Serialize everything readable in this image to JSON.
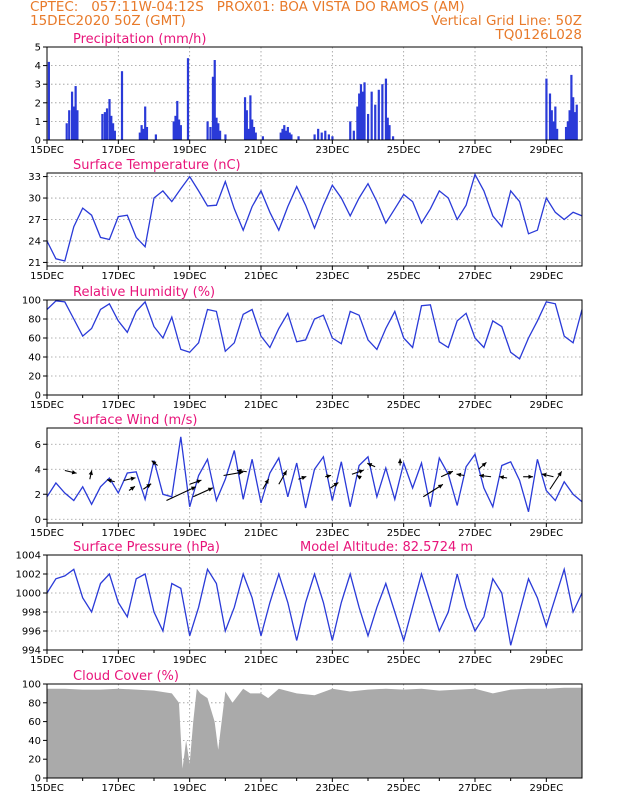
{
  "header": {
    "line1_left": "CPTEC:   057:11W-04:12S   PROX01: BOA VISTA DO RAMOS (AM)",
    "line2_left": "15DEC2020 50Z (GMT)",
    "line2_right": "Vertical Grid Line: 50Z",
    "line3_right": "TQ0126L028"
  },
  "colors": {
    "header": "#e87a2a",
    "title": "#e8147a",
    "line": "#2a3ad8",
    "bar": "#2a3ad8",
    "cloud": "#aaaaaa"
  },
  "x_ticks": [
    "15DEC",
    "17DEC",
    "19DEC",
    "21DEC",
    "23DEC",
    "25DEC",
    "27DEC",
    "29DEC"
  ],
  "x_tick_days": [
    0,
    2,
    4,
    6,
    8,
    10,
    12,
    14
  ],
  "x_range_days": [
    0,
    15
  ],
  "chart_data": [
    {
      "type": "bar",
      "name": "precipitation",
      "title": "Precipitation (mm/h)",
      "ylim": [
        0,
        5
      ],
      "yticks": [
        0,
        1,
        2,
        3,
        4,
        5
      ],
      "x_days": [
        0.05,
        0.55,
        0.62,
        0.7,
        0.75,
        0.8,
        0.85,
        1.55,
        1.62,
        1.68,
        1.75,
        1.8,
        1.85,
        1.9,
        2.1,
        2.6,
        2.65,
        2.7,
        2.75,
        2.8,
        3.05,
        3.55,
        3.6,
        3.65,
        3.7,
        3.75,
        3.95,
        4.5,
        4.58,
        4.65,
        4.7,
        4.75,
        4.8,
        4.85,
        5.0,
        5.55,
        5.6,
        5.65,
        5.7,
        5.75,
        5.8,
        5.85,
        6.05,
        6.55,
        6.6,
        6.65,
        6.7,
        6.75,
        6.8,
        6.85,
        7.05,
        7.5,
        7.6,
        7.7,
        7.8,
        7.9,
        8.0,
        8.5,
        8.6,
        8.7,
        8.75,
        8.8,
        8.85,
        8.9,
        9.0,
        9.1,
        9.2,
        9.3,
        9.4,
        9.5,
        9.55,
        9.6,
        9.7,
        14.0,
        14.1,
        14.15,
        14.2,
        14.25,
        14.3,
        14.55,
        14.6,
        14.65,
        14.7,
        14.75,
        14.8,
        14.85
      ],
      "values": [
        4.2,
        0.9,
        1.6,
        2.6,
        1.8,
        2.9,
        1.6,
        1.4,
        1.5,
        1.7,
        2.2,
        1.3,
        0.9,
        0.5,
        3.7,
        0.4,
        0.8,
        0.6,
        1.8,
        0.7,
        0.3,
        1.0,
        1.3,
        2.1,
        1.1,
        0.8,
        4.4,
        1.0,
        0.7,
        3.4,
        4.3,
        1.2,
        0.9,
        0.5,
        0.3,
        2.3,
        1.6,
        0.6,
        2.4,
        1.1,
        0.7,
        0.4,
        0.2,
        0.4,
        0.6,
        0.8,
        0.5,
        0.7,
        0.4,
        0.3,
        0.2,
        0.3,
        0.6,
        0.4,
        0.5,
        0.3,
        0.2,
        1.0,
        0.5,
        1.8,
        2.5,
        3.0,
        2.6,
        3.1,
        1.4,
        2.6,
        1.9,
        2.7,
        3.0,
        3.3,
        1.2,
        0.8,
        0.2,
        3.3,
        2.5,
        1.6,
        1.0,
        1.8,
        0.6,
        0.7,
        1.0,
        1.6,
        3.5,
        2.3,
        1.5,
        1.9
      ]
    },
    {
      "type": "line",
      "name": "temperature",
      "title": "Surface Temperature (nC)",
      "ylim": [
        20.5,
        33.5
      ],
      "yticks": [
        21,
        24,
        27,
        30,
        33
      ],
      "x": [
        0,
        0.25,
        0.5,
        0.75,
        1.0,
        1.25,
        1.5,
        1.75,
        2.0,
        2.25,
        2.5,
        2.75,
        3.0,
        3.25,
        3.5,
        3.75,
        4.0,
        4.25,
        4.5,
        4.75,
        5.0,
        5.25,
        5.5,
        5.75,
        6.0,
        6.25,
        6.5,
        6.75,
        7.0,
        7.25,
        7.5,
        7.75,
        8.0,
        8.25,
        8.5,
        8.75,
        9.0,
        9.25,
        9.5,
        9.75,
        10.0,
        10.25,
        10.5,
        10.75,
        11.0,
        11.25,
        11.5,
        11.75,
        12.0,
        12.25,
        12.5,
        12.75,
        13.0,
        13.25,
        13.5,
        13.75,
        14.0,
        14.25,
        14.5,
        14.75,
        15.0
      ],
      "values": [
        24,
        21.5,
        21.2,
        26.0,
        28.6,
        27.6,
        24.5,
        24.2,
        27.4,
        27.6,
        24.5,
        23.2,
        30.0,
        31.0,
        29.5,
        31.3,
        33.0,
        31.0,
        28.9,
        29.0,
        32.3,
        28.5,
        25.5,
        28.8,
        31.0,
        28.0,
        25.5,
        28.8,
        31.6,
        29.0,
        25.8,
        29.0,
        31.8,
        30.0,
        27.5,
        30.0,
        32.0,
        29.5,
        26.5,
        28.5,
        30.5,
        29.5,
        26.5,
        28.5,
        31.0,
        30.0,
        27.0,
        29.0,
        33.3,
        31.0,
        27.5,
        26.0,
        31.0,
        29.5,
        25.0,
        25.5,
        30.0,
        28.0,
        27.0,
        28.0,
        27.5
      ]
    },
    {
      "type": "line",
      "name": "humidity",
      "title": "Relative Humidity (%)",
      "ylim": [
        0,
        100
      ],
      "yticks": [
        0,
        20,
        40,
        60,
        80,
        100
      ],
      "x": [
        0,
        0.25,
        0.5,
        0.75,
        1.0,
        1.25,
        1.5,
        1.75,
        2.0,
        2.25,
        2.5,
        2.75,
        3.0,
        3.25,
        3.5,
        3.75,
        4.0,
        4.25,
        4.5,
        4.75,
        5.0,
        5.25,
        5.5,
        5.75,
        6.0,
        6.25,
        6.5,
        6.75,
        7.0,
        7.25,
        7.5,
        7.75,
        8.0,
        8.25,
        8.5,
        8.75,
        9.0,
        9.25,
        9.5,
        9.75,
        10.0,
        10.25,
        10.5,
        10.75,
        11.0,
        11.25,
        11.5,
        11.75,
        12.0,
        12.25,
        12.5,
        12.75,
        13.0,
        13.25,
        13.5,
        13.75,
        14.0,
        14.25,
        14.5,
        14.75,
        15.0
      ],
      "values": [
        90,
        99,
        98,
        80,
        62,
        70,
        90,
        96,
        78,
        66,
        88,
        98,
        72,
        60,
        82,
        48,
        45,
        55,
        90,
        88,
        46,
        55,
        85,
        90,
        62,
        50,
        70,
        86,
        56,
        58,
        80,
        84,
        60,
        54,
        88,
        84,
        58,
        48,
        70,
        88,
        60,
        50,
        94,
        95,
        56,
        50,
        78,
        86,
        60,
        50,
        78,
        72,
        45,
        38,
        60,
        78,
        98,
        96,
        62,
        55,
        90
      ]
    },
    {
      "type": "line",
      "name": "wind",
      "title": "Surface Wind (m/s)",
      "ylim": [
        -0.3,
        7.3
      ],
      "yticks": [
        0,
        2,
        4,
        6
      ],
      "x": [
        0,
        0.25,
        0.5,
        0.75,
        1.0,
        1.25,
        1.5,
        1.75,
        2.0,
        2.25,
        2.5,
        2.75,
        3.0,
        3.25,
        3.5,
        3.75,
        4.0,
        4.25,
        4.5,
        4.75,
        5.0,
        5.25,
        5.5,
        5.75,
        6.0,
        6.25,
        6.5,
        6.75,
        7.0,
        7.25,
        7.5,
        7.75,
        8.0,
        8.25,
        8.5,
        8.75,
        9.0,
        9.25,
        9.5,
        9.75,
        10.0,
        10.25,
        10.5,
        10.75,
        11.0,
        11.25,
        11.5,
        11.75,
        12.0,
        12.25,
        12.5,
        12.75,
        13.0,
        13.25,
        13.5,
        13.75,
        14.0,
        14.25,
        14.5,
        14.75,
        15.0
      ],
      "values": [
        1.8,
        2.9,
        2.1,
        1.5,
        2.6,
        1.2,
        2.6,
        3.3,
        2.1,
        3.7,
        3.8,
        1.6,
        4.7,
        2.0,
        1.8,
        6.6,
        1.0,
        3.5,
        4.8,
        1.5,
        3.2,
        5.5,
        1.6,
        4.8,
        1.3,
        3.7,
        4.9,
        1.8,
        4.5,
        0.9,
        4.0,
        5.0,
        1.5,
        4.6,
        1.0,
        4.3,
        5.0,
        1.8,
        4.1,
        1.6,
        4.5,
        2.5,
        4.5,
        1.0,
        4.9,
        3.6,
        1.1,
        4.2,
        5.2,
        2.5,
        1.0,
        4.3,
        4.6,
        3.1,
        0.6,
        4.8,
        2.3,
        1.5,
        3.0,
        2.0,
        1.4
      ],
      "arrows": [
        {
          "x": 0.5,
          "y": 3.9,
          "u": 0.6,
          "v": -0.4
        },
        {
          "x": 1.2,
          "y": 3.2,
          "u": 0.1,
          "v": 1.3
        },
        {
          "x": 1.9,
          "y": 3.0,
          "u": -0.4,
          "v": 0.3
        },
        {
          "x": 2.15,
          "y": 3.1,
          "u": 0.6,
          "v": 0.4
        },
        {
          "x": 2.3,
          "y": 2.3,
          "u": 0.3,
          "v": 0.6
        },
        {
          "x": 2.7,
          "y": 2.4,
          "u": 0.4,
          "v": 0.8
        },
        {
          "x": 3.1,
          "y": 4.3,
          "u": -0.3,
          "v": 0.7
        },
        {
          "x": 3.35,
          "y": 1.5,
          "u": 1.5,
          "v": 2.0
        },
        {
          "x": 4.0,
          "y": 2.8,
          "u": 0.6,
          "v": 0.6
        },
        {
          "x": 4.1,
          "y": 1.8,
          "u": 1.0,
          "v": 1.3
        },
        {
          "x": 4.95,
          "y": 3.5,
          "u": 1.0,
          "v": 0.5
        },
        {
          "x": 5.6,
          "y": 3.8,
          "u": -0.5,
          "v": 0.2
        },
        {
          "x": 6.05,
          "y": 2.4,
          "u": 0.3,
          "v": 1.5
        },
        {
          "x": 6.5,
          "y": 2.8,
          "u": 0.4,
          "v": 2.0
        },
        {
          "x": 7.05,
          "y": 3.2,
          "u": 0.4,
          "v": 0.4
        },
        {
          "x": 7.8,
          "y": 3.4,
          "u": 0.3,
          "v": 0.2
        },
        {
          "x": 7.95,
          "y": 2.5,
          "u": 0.4,
          "v": 0.8
        },
        {
          "x": 8.55,
          "y": 3.6,
          "u": 0.6,
          "v": 0.6
        },
        {
          "x": 8.8,
          "y": 3.3,
          "u": -0.2,
          "v": 0.4
        },
        {
          "x": 9.2,
          "y": 4.2,
          "u": -0.4,
          "v": 0.5
        },
        {
          "x": 9.9,
          "y": 4.3,
          "u": 0.0,
          "v": 1.0
        },
        {
          "x": 10.55,
          "y": 1.8,
          "u": 1.0,
          "v": 1.8
        },
        {
          "x": 11.05,
          "y": 3.4,
          "u": 0.6,
          "v": 0.8
        },
        {
          "x": 11.7,
          "y": 3.5,
          "u": -0.4,
          "v": 0.2
        },
        {
          "x": 12.1,
          "y": 4.0,
          "u": 0.4,
          "v": 1.0
        },
        {
          "x": 12.45,
          "y": 3.4,
          "u": -0.6,
          "v": 0.2
        },
        {
          "x": 12.9,
          "y": 3.3,
          "u": -0.4,
          "v": 0.2
        },
        {
          "x": 13.35,
          "y": 3.4,
          "u": 0.5,
          "v": 0.0
        },
        {
          "x": 14.1,
          "y": 2.4,
          "u": 0.6,
          "v": 2.6
        },
        {
          "x": 14.2,
          "y": 3.4,
          "u": -0.6,
          "v": 0.4
        }
      ]
    },
    {
      "type": "line",
      "name": "pressure",
      "title": "Surface Pressure (hPa)",
      "title_right": "Model Altitude: 82.5724 m",
      "ylim": [
        994,
        1004
      ],
      "yticks": [
        994,
        996,
        998,
        1000,
        1002,
        1004
      ],
      "x": [
        0,
        0.25,
        0.5,
        0.75,
        1.0,
        1.25,
        1.5,
        1.75,
        2.0,
        2.25,
        2.5,
        2.75,
        3.0,
        3.25,
        3.5,
        3.75,
        4.0,
        4.25,
        4.5,
        4.75,
        5.0,
        5.25,
        5.5,
        5.75,
        6.0,
        6.25,
        6.5,
        6.75,
        7.0,
        7.25,
        7.5,
        7.75,
        8.0,
        8.25,
        8.5,
        8.75,
        9.0,
        9.25,
        9.5,
        9.75,
        10.0,
        10.25,
        10.5,
        10.75,
        11.0,
        11.25,
        11.5,
        11.75,
        12.0,
        12.25,
        12.5,
        12.75,
        13.0,
        13.25,
        13.5,
        13.75,
        14.0,
        14.25,
        14.5,
        14.75,
        15.0
      ],
      "values": [
        1000,
        1001.5,
        1001.8,
        1002.5,
        999.5,
        998.0,
        1001.0,
        1002.0,
        999.0,
        997.5,
        1001.5,
        1002.0,
        998.0,
        996.0,
        1001.0,
        1000.5,
        995.5,
        998.5,
        1002.5,
        1001.0,
        996.0,
        998.5,
        1002.0,
        999.5,
        995.5,
        999.0,
        1002.0,
        999.0,
        995.0,
        999.0,
        1002.0,
        999.0,
        995.0,
        999.0,
        1002.0,
        998.5,
        995.5,
        998.5,
        1001.0,
        998.0,
        995.0,
        998.5,
        1002.0,
        999.0,
        996.0,
        998.0,
        1002.0,
        998.5,
        996.0,
        997.5,
        1001.5,
        1000.0,
        994.5,
        998.0,
        1001.5,
        999.5,
        996.5,
        999.5,
        1002.5,
        998.0,
        1000.0
      ]
    },
    {
      "type": "area",
      "name": "cloud",
      "title": "Cloud Cover (%)",
      "ylim": [
        0,
        100
      ],
      "yticks": [
        0,
        20,
        40,
        60,
        80,
        100
      ],
      "x": [
        0,
        0.5,
        1.0,
        1.5,
        2.0,
        2.5,
        3.0,
        3.5,
        3.7,
        3.8,
        3.9,
        4.0,
        4.1,
        4.2,
        4.3,
        4.5,
        4.7,
        4.8,
        5.0,
        5.2,
        5.5,
        5.7,
        6.0,
        6.2,
        6.5,
        7.0,
        7.5,
        8.0,
        8.5,
        9.0,
        9.5,
        10.0,
        10.5,
        11.0,
        11.5,
        12.0,
        12.5,
        13.0,
        13.5,
        14.0,
        14.5,
        15.0
      ],
      "values": [
        95,
        95,
        94,
        94,
        95,
        94,
        93,
        90,
        80,
        10,
        40,
        15,
        60,
        95,
        90,
        85,
        60,
        30,
        92,
        80,
        95,
        90,
        90,
        85,
        95,
        90,
        88,
        95,
        92,
        94,
        95,
        94,
        95,
        93,
        94,
        95,
        90,
        94,
        95,
        95,
        96,
        96
      ]
    }
  ]
}
